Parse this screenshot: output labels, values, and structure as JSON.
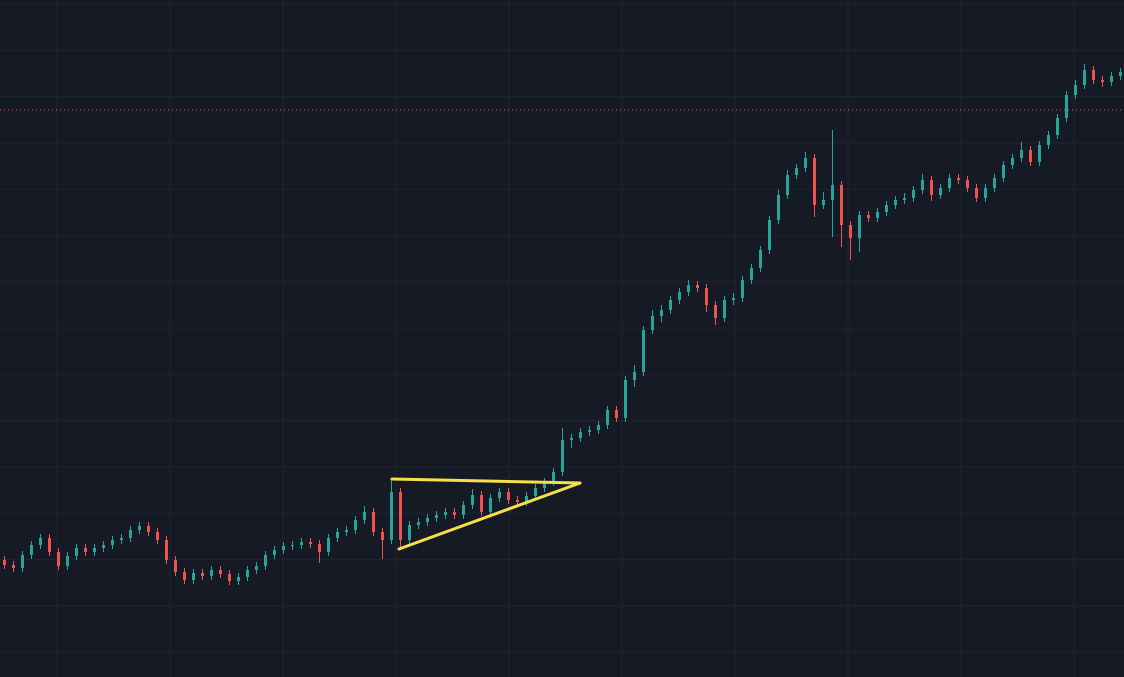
{
  "chart_data": {
    "type": "candlestick",
    "ylim": [
      0,
      677
    ],
    "grid": true,
    "up_color": "#26a69a",
    "down_color": "#ef5350",
    "open": [
      117,
      112,
      109,
      122,
      132,
      139,
      125,
      111,
      121,
      129,
      125,
      129,
      132,
      137,
      139,
      147,
      151,
      145,
      137,
      117,
      105,
      97,
      104,
      101,
      107,
      103,
      96,
      100,
      107,
      111,
      122,
      127,
      131,
      132,
      135,
      133,
      125,
      139,
      145,
      147,
      157,
      165,
      145,
      137,
      185,
      137,
      152,
      155,
      159,
      162,
      165,
      162,
      172,
      182,
      165,
      179,
      185,
      177,
      175,
      181,
      189,
      195,
      205,
      237,
      239,
      245,
      247,
      252,
      267,
      259,
      297,
      305,
      347,
      361,
      367,
      377,
      385,
      392,
      389,
      372,
      359,
      377,
      379,
      397,
      409,
      427,
      457,
      482,
      502,
      509,
      519,
      472,
      477,
      492,
      452,
      439,
      462,
      459,
      465,
      472,
      477,
      479,
      487,
      497,
      482,
      489,
      499,
      497,
      489,
      479,
      489,
      499,
      512,
      519,
      527,
      515,
      532,
      542,
      559,
      582,
      592,
      607,
      597,
      595,
      601
    ],
    "high": [
      121,
      116,
      126,
      136,
      143,
      143,
      129,
      125,
      133,
      133,
      133,
      136,
      141,
      143,
      151,
      155,
      155,
      149,
      141,
      121,
      109,
      108,
      108,
      111,
      111,
      107,
      104,
      111,
      115,
      126,
      131,
      135,
      136,
      139,
      139,
      137,
      143,
      149,
      151,
      161,
      171,
      169,
      149,
      199,
      189,
      156,
      159,
      163,
      166,
      169,
      169,
      176,
      188,
      186,
      183,
      189,
      189,
      181,
      185,
      193,
      199,
      209,
      249,
      243,
      249,
      251,
      256,
      271,
      271,
      301,
      312,
      351,
      367,
      372,
      381,
      389,
      397,
      396,
      393,
      376,
      381,
      384,
      401,
      413,
      431,
      461,
      487,
      507,
      513,
      525,
      523,
      485,
      547,
      496,
      456,
      466,
      466,
      469,
      476,
      481,
      484,
      491,
      503,
      501,
      493,
      503,
      503,
      501,
      493,
      493,
      503,
      516,
      523,
      535,
      531,
      536,
      546,
      563,
      586,
      597,
      613,
      611,
      601,
      605,
      609
    ],
    "low": [
      108,
      105,
      105,
      118,
      128,
      121,
      107,
      107,
      117,
      121,
      121,
      125,
      128,
      133,
      135,
      143,
      141,
      133,
      113,
      101,
      93,
      93,
      97,
      97,
      99,
      92,
      92,
      96,
      103,
      107,
      118,
      123,
      127,
      128,
      129,
      114,
      121,
      135,
      141,
      143,
      153,
      141,
      118,
      133,
      127,
      133,
      148,
      151,
      155,
      158,
      158,
      158,
      168,
      161,
      161,
      175,
      173,
      171,
      171,
      177,
      185,
      191,
      201,
      229,
      235,
      241,
      243,
      248,
      255,
      255,
      290,
      301,
      343,
      355,
      363,
      373,
      381,
      385,
      365,
      352,
      355,
      372,
      375,
      393,
      405,
      423,
      453,
      478,
      498,
      505,
      460,
      468,
      440,
      430,
      417,
      425,
      455,
      455,
      461,
      468,
      473,
      475,
      483,
      476,
      478,
      485,
      493,
      485,
      475,
      475,
      485,
      495,
      508,
      515,
      511,
      511,
      528,
      538,
      555,
      578,
      588,
      593,
      590,
      591,
      597
    ],
    "close": [
      112,
      109,
      122,
      132,
      139,
      125,
      111,
      121,
      129,
      125,
      129,
      132,
      137,
      139,
      147,
      151,
      145,
      137,
      117,
      105,
      97,
      104,
      101,
      107,
      103,
      96,
      100,
      107,
      111,
      122,
      127,
      131,
      132,
      135,
      133,
      125,
      139,
      145,
      147,
      157,
      165,
      145,
      137,
      185,
      137,
      152,
      155,
      159,
      162,
      165,
      162,
      172,
      182,
      165,
      179,
      185,
      177,
      175,
      181,
      189,
      195,
      205,
      237,
      239,
      245,
      247,
      252,
      267,
      259,
      297,
      305,
      347,
      361,
      367,
      377,
      385,
      392,
      389,
      372,
      359,
      377,
      379,
      397,
      409,
      427,
      457,
      482,
      502,
      509,
      519,
      472,
      477,
      492,
      452,
      439,
      462,
      459,
      465,
      472,
      477,
      479,
      487,
      497,
      482,
      489,
      499,
      497,
      489,
      479,
      489,
      499,
      512,
      519,
      527,
      515,
      532,
      542,
      559,
      582,
      592,
      607,
      597,
      595,
      601,
      605
    ]
  }
}
